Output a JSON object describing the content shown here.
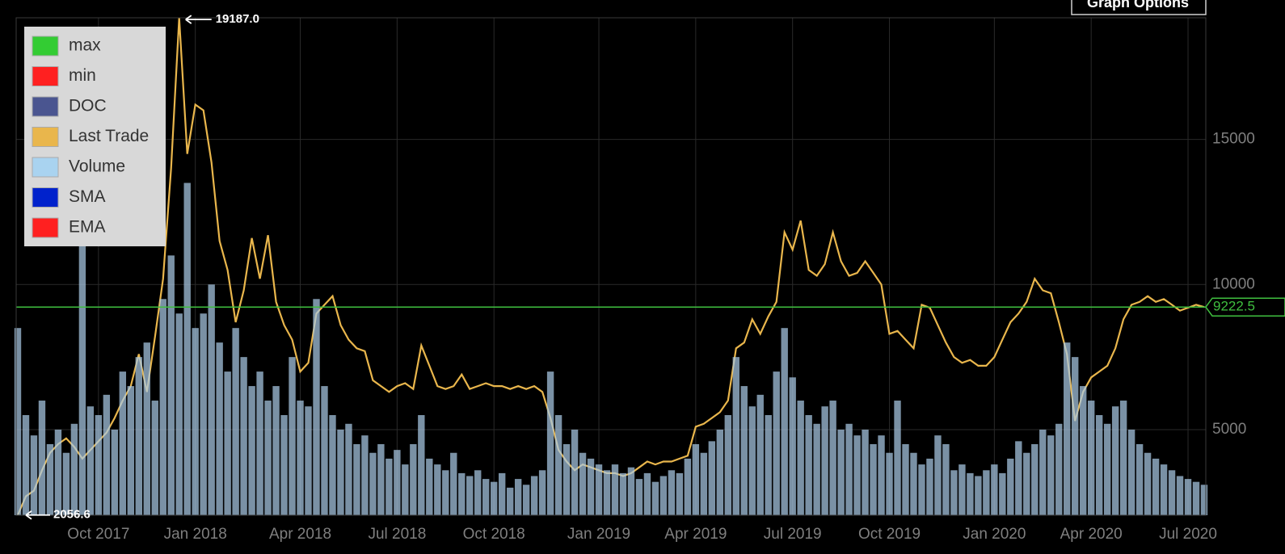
{
  "ui": {
    "graph_options_button": "Graph Options"
  },
  "chart_data": {
    "type": "line",
    "categories": [
      null,
      null,
      null,
      null,
      null,
      null,
      null,
      null,
      null,
      null,
      "Oct 2017",
      null,
      null,
      null,
      null,
      null,
      null,
      null,
      null,
      null,
      null,
      null,
      "Jan 2018",
      null,
      null,
      null,
      null,
      null,
      null,
      null,
      null,
      null,
      null,
      null,
      null,
      "Apr 2018",
      null,
      null,
      null,
      null,
      null,
      null,
      null,
      null,
      null,
      null,
      null,
      "Jul 2018",
      null,
      null,
      null,
      null,
      null,
      null,
      null,
      null,
      null,
      null,
      null,
      "Oct 2018",
      null,
      null,
      null,
      null,
      null,
      null,
      null,
      null,
      null,
      null,
      null,
      null,
      "Jan 2019",
      null,
      null,
      null,
      null,
      null,
      null,
      null,
      null,
      null,
      null,
      null,
      "Apr 2019",
      null,
      null,
      null,
      null,
      null,
      null,
      null,
      null,
      null,
      null,
      null,
      "Jul 2019",
      null,
      null,
      null,
      null,
      null,
      null,
      null,
      null,
      null,
      null,
      null,
      "Oct 2019",
      null,
      null,
      null,
      null,
      null,
      null,
      null,
      null,
      null,
      null,
      null,
      null,
      "Jan 2020",
      null,
      null,
      null,
      null,
      null,
      null,
      null,
      null,
      null,
      null,
      null,
      "Apr 2020",
      null,
      null,
      null,
      null,
      null,
      null,
      null,
      null,
      null,
      null,
      null,
      "Jul 2020",
      null,
      null
    ],
    "series": [
      {
        "name": "Last Trade",
        "color": "#e9b64c",
        "values": [
          2056.6,
          2700,
          2900,
          3600,
          4200,
          4500,
          4700,
          4400,
          4000,
          4300,
          4600,
          4900,
          5400,
          6000,
          6500,
          7600,
          6300,
          8200,
          10200,
          14000,
          19187,
          14500,
          16200,
          16000,
          14200,
          11500,
          10500,
          8700,
          9800,
          11600,
          10200,
          11700,
          9400,
          8600,
          8100,
          7000,
          7300,
          9000,
          9300,
          9600,
          8600,
          8100,
          7800,
          7700,
          6700,
          6500,
          6300,
          6500,
          6600,
          6400,
          7900,
          7200,
          6500,
          6400,
          6500,
          6900,
          6400,
          6500,
          6600,
          6500,
          6500,
          6400,
          6500,
          6400,
          6500,
          6300,
          5400,
          4300,
          3900,
          3600,
          3800,
          3700,
          3600,
          3500,
          3500,
          3400,
          3500,
          3700,
          3900,
          3800,
          3900,
          3900,
          4000,
          4100,
          5100,
          5200,
          5400,
          5600,
          6000,
          7800,
          8000,
          8800,
          8300,
          8900,
          9400,
          11800,
          11200,
          12200,
          10500,
          10300,
          10700,
          11800,
          10800,
          10300,
          10400,
          10800,
          10400,
          10000,
          8300,
          8400,
          8100,
          7800,
          9300,
          9200,
          8600,
          8000,
          7500,
          7300,
          7400,
          7200,
          7200,
          7500,
          8100,
          8700,
          9000,
          9400,
          10200,
          9800,
          9700,
          8700,
          7600,
          5300,
          6300,
          6800,
          7000,
          7200,
          7800,
          8800,
          9300,
          9400,
          9600,
          9400,
          9500,
          9300,
          9100,
          9200,
          9300,
          9222.5
        ]
      },
      {
        "name": "Volume",
        "color": "#a9c9e4",
        "values": [
          8500,
          5500,
          4800,
          6000,
          4500,
          5000,
          4200,
          5200,
          16000,
          5800,
          5500,
          6200,
          5000,
          7000,
          6500,
          7500,
          8000,
          6000,
          9500,
          11000,
          9000,
          13500,
          8500,
          9000,
          10000,
          8000,
          7000,
          8500,
          7500,
          6500,
          7000,
          6000,
          6500,
          5500,
          7500,
          6000,
          5800,
          9500,
          6500,
          5500,
          5000,
          5200,
          4500,
          4800,
          4200,
          4500,
          4000,
          4300,
          3800,
          4500,
          5500,
          4000,
          3800,
          3600,
          4200,
          3500,
          3400,
          3600,
          3300,
          3200,
          3500,
          3000,
          3300,
          3100,
          3400,
          3600,
          7000,
          5500,
          4500,
          5000,
          4200,
          4000,
          3800,
          3600,
          3800,
          3500,
          3700,
          3300,
          3500,
          3200,
          3400,
          3600,
          3500,
          4000,
          4500,
          4200,
          4600,
          5000,
          5500,
          7500,
          6500,
          5800,
          6200,
          5500,
          7000,
          8500,
          6800,
          6000,
          5500,
          5200,
          5800,
          6000,
          5000,
          5200,
          4800,
          5000,
          4500,
          4800,
          4200,
          6000,
          4500,
          4200,
          3800,
          4000,
          4800,
          4500,
          3600,
          3800,
          3500,
          3400,
          3600,
          3800,
          3500,
          4000,
          4600,
          4200,
          4500,
          5000,
          4800,
          5200,
          8000,
          7500,
          6500,
          6000,
          5500,
          5200,
          5800,
          6000,
          5000,
          4500,
          4200,
          4000,
          3800,
          3600,
          3400,
          3300,
          3200,
          3100
        ]
      }
    ],
    "legend": [
      {
        "name": "max",
        "color": "#33cc33"
      },
      {
        "name": "min",
        "color": "#ff2020"
      },
      {
        "name": "DOC",
        "color": "#4a5590"
      },
      {
        "name": "Last Trade",
        "color": "#e9b64c"
      },
      {
        "name": "Volume",
        "color": "#a9d3f0"
      },
      {
        "name": "SMA",
        "color": "#0022cc"
      },
      {
        "name": "EMA",
        "color": "#ff2020"
      }
    ],
    "max_label": {
      "value": 19187,
      "label": "19187.0"
    },
    "min_label": {
      "value": 2056.6,
      "label": "2056.6"
    },
    "last_value": {
      "value": 9222.5,
      "label": "9222.5"
    },
    "last_value_color": "#3fbf3f",
    "ylim": [
      2050,
      19190
    ],
    "yticks": [
      5000,
      10000,
      15000
    ],
    "grid": true
  }
}
